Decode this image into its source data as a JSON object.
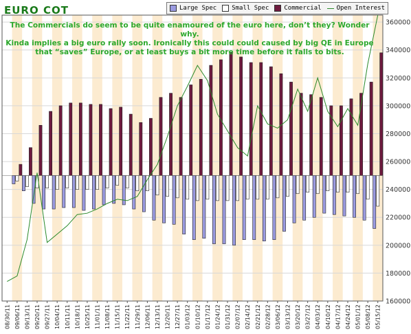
{
  "title": "EURO COT",
  "annotation": [
    "The Commercials do seem to be quite enamoured of the euro here, don’t they? Wonder why.",
    "Kinda implies a big euro rally soon. Ironically this could could caused by big QE in Europe",
    "that “saves” Europe, or at least buys a bit more time before it falls to bits."
  ],
  "legend": {
    "large_spec": "Large Spec",
    "small_spec": "Small Spec",
    "commercial": "Commercial",
    "open_interest": "Open Interest"
  },
  "colors": {
    "large_spec": "#9a9ae0",
    "small_spec": "#ffffff",
    "commercial": "#6e1a3e",
    "open_interest": "#2a8a2a",
    "stripe": "#fcebd0",
    "grid": "#d8d8d8",
    "title": "#1a7a1a",
    "annotation": "#2da82d"
  },
  "chart_data": {
    "type": "bar",
    "y_axis": {
      "range": [
        160000,
        365000
      ],
      "ticks": [
        160000,
        180000,
        200000,
        220000,
        240000,
        260000,
        280000,
        300000,
        320000,
        340000,
        360000
      ],
      "tick_labels": [
        "160000",
        "180000",
        "200000",
        "220000",
        "240000",
        "260000",
        "280000",
        "300000",
        "320000",
        "340000",
        "360000"
      ],
      "position": "right"
    },
    "zero_level": 250000,
    "x_tick_labels": [
      "08/30/11",
      "09/06/11",
      "09/13/11",
      "09/20/11",
      "09/27/11",
      "10/04/11",
      "10/11/11",
      "10/18/11",
      "10/25/11",
      "11/01/11",
      "11/08/11",
      "11/15/11",
      "11/22/11",
      "11/29/11",
      "12/06/11",
      "12/13/11",
      "12/20/11",
      "12/27/11",
      "01/03/12",
      "01/10/12",
      "01/17/12",
      "01/24/12",
      "01/31/12",
      "02/07/12",
      "02/14/12",
      "02/21/12",
      "02/28/12",
      "03/06/12",
      "03/13/12",
      "03/20/12",
      "03/27/12",
      "04/03/12",
      "04/10/12",
      "04/17/12",
      "04/24/12",
      "05/01/12",
      "05/08/12",
      "05/15/12"
    ],
    "series": [
      {
        "name": "Large Spec",
        "values": [
          0,
          -6000,
          -11000,
          -20000,
          -24000,
          -24000,
          -23000,
          -23000,
          -25000,
          -24000,
          -21000,
          -20000,
          -21000,
          -24000,
          -26000,
          -32000,
          -34000,
          -35000,
          -42000,
          -46000,
          -45000,
          -49000,
          -49000,
          -50000,
          -46000,
          -46000,
          -47000,
          -46000,
          -40000,
          -34000,
          -32000,
          -30000,
          -27000,
          -28000,
          -29000,
          -30000,
          -32000,
          -38000
        ]
      },
      {
        "name": "Small Spec",
        "values": [
          0,
          -4000,
          -8000,
          -9000,
          -9000,
          -10000,
          -9000,
          -10000,
          -10000,
          -10000,
          -9000,
          -7000,
          -9000,
          -11000,
          -11000,
          -14000,
          -15000,
          -16000,
          -17000,
          -18000,
          -17000,
          -18000,
          -18000,
          -18000,
          -17000,
          -17000,
          -17000,
          -16000,
          -15000,
          -13000,
          -12000,
          -13000,
          -11000,
          -12000,
          -12000,
          -13000,
          -17000,
          -22000
        ]
      },
      {
        "name": "Commercial",
        "values": [
          0,
          8000,
          20000,
          36000,
          46000,
          50000,
          52000,
          52000,
          51000,
          51000,
          48000,
          49000,
          44000,
          38000,
          41000,
          56000,
          59000,
          56000,
          65000,
          69000,
          79000,
          83000,
          88000,
          85000,
          81000,
          81000,
          78000,
          73000,
          67000,
          59000,
          58000,
          56000,
          50000,
          50000,
          55000,
          59000,
          67000,
          88000
        ]
      },
      {
        "name": "Open Interest",
        "values": [
          174000,
          178000,
          204000,
          252000,
          202000,
          208000,
          214000,
          222000,
          223000,
          226000,
          230000,
          233000,
          232000,
          235000,
          247000,
          258000,
          278000,
          300000,
          314000,
          329000,
          318000,
          294000,
          282000,
          270000,
          264000,
          300000,
          287000,
          284000,
          290000,
          312000,
          296000,
          320000,
          296000,
          285000,
          298000,
          286000,
          330000,
          365000
        ]
      }
    ],
    "legend_position": "top",
    "grid": true
  }
}
